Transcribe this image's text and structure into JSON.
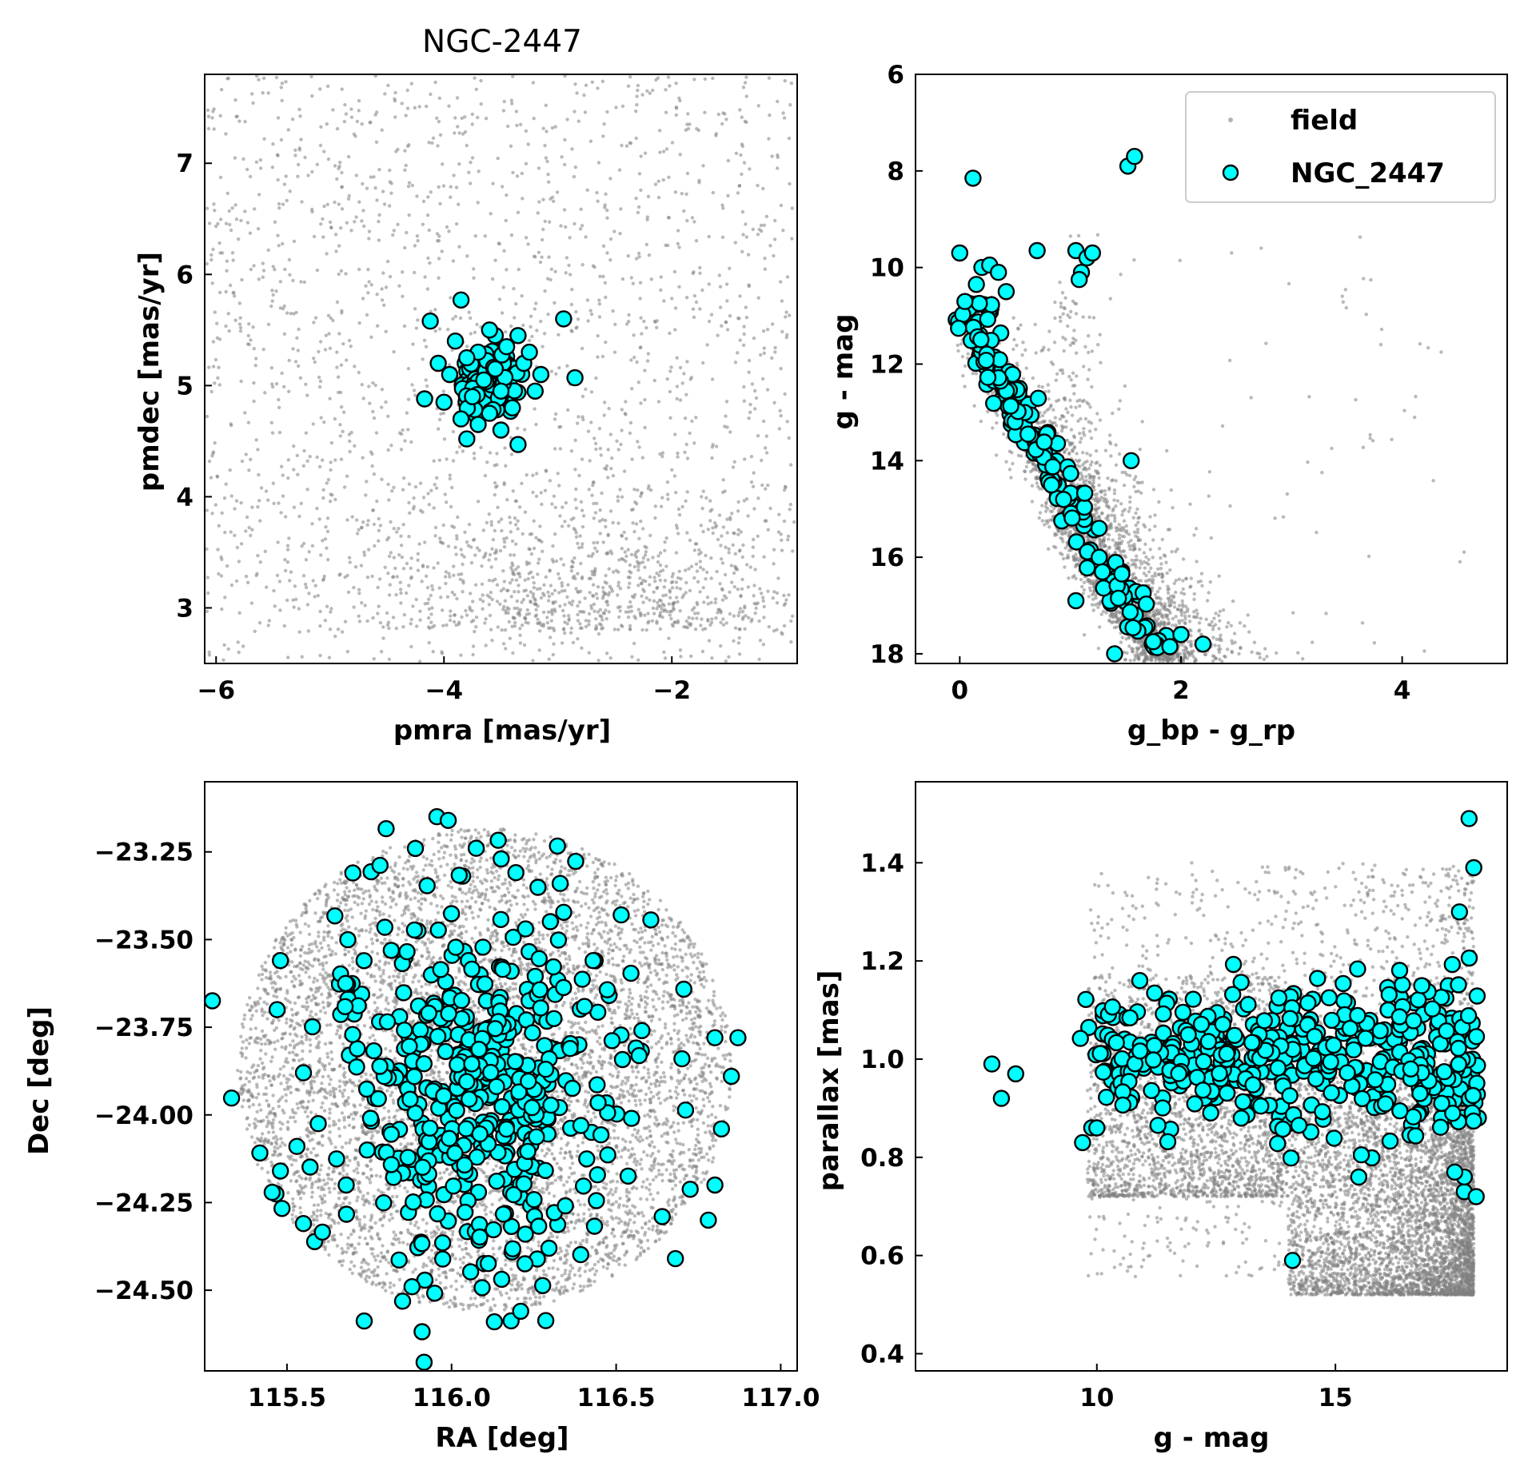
{
  "colors": {
    "field": "#808080",
    "cluster_fill": "#00ffff",
    "cluster_edge": "#000000"
  },
  "chart_data": [
    {
      "type": "scatter",
      "title": "NGC-2447",
      "xlabel": "pmra [mas/yr]",
      "ylabel": "pmdec [mas/yr]",
      "xlim": [
        -6.1,
        -0.9
      ],
      "ylim": [
        2.5,
        7.8
      ],
      "xticks": [
        -6,
        -4,
        -2
      ],
      "yticks": [
        3,
        4,
        5,
        6,
        7
      ],
      "field_distribution": {
        "description": "uniform background with denser region toward lower right",
        "count": 2600
      },
      "series": [
        {
          "name": "NGC_2447",
          "points": [
            [
              -3.85,
              5.77
            ],
            [
              -4.12,
              5.58
            ],
            [
              -2.95,
              5.6
            ],
            [
              -2.85,
              5.07
            ],
            [
              -4.17,
              4.88
            ],
            [
              -3.35,
              4.47
            ],
            [
              -3.8,
              4.52
            ],
            [
              -3.5,
              4.95
            ],
            [
              -3.7,
              5.3
            ],
            [
              -3.55,
              5.45
            ],
            [
              -3.95,
              5.1
            ],
            [
              -3.3,
              5.2
            ],
            [
              -3.6,
              4.75
            ],
            [
              -3.45,
              5.35
            ],
            [
              -3.75,
              4.9
            ],
            [
              -3.2,
              4.95
            ],
            [
              -3.9,
              5.4
            ],
            [
              -3.65,
              5.05
            ],
            [
              -3.4,
              4.8
            ],
            [
              -4.0,
              4.85
            ],
            [
              -3.25,
              5.3
            ],
            [
              -3.55,
              5.15
            ],
            [
              -3.85,
              4.7
            ],
            [
              -3.35,
              5.45
            ],
            [
              -3.7,
              4.65
            ],
            [
              -4.05,
              5.2
            ],
            [
              -3.15,
              5.1
            ],
            [
              -3.5,
              4.6
            ],
            [
              -3.8,
              5.25
            ],
            [
              -3.6,
              5.5
            ]
          ],
          "extra_random_count": 130,
          "extra_center": [
            -3.6,
            5.02
          ],
          "extra_spread": [
            0.28,
            0.26
          ]
        }
      ]
    },
    {
      "type": "scatter",
      "xlabel": "g_bp - g_rp",
      "ylabel": "g - mag",
      "xlim": [
        -0.4,
        4.95
      ],
      "ylim": [
        18.2,
        6.0
      ],
      "yaxis_inverted": true,
      "xticks": [
        0,
        2,
        4
      ],
      "yticks": [
        6,
        8,
        10,
        12,
        14,
        16,
        18
      ],
      "legend": {
        "position": "top-right",
        "entries": [
          "field",
          "NGC_2447"
        ]
      },
      "field_distribution": {
        "description": "main sequence band plus scattered redder field stars",
        "count": 3200
      },
      "series": [
        {
          "name": "field"
        },
        {
          "name": "NGC_2447",
          "sequence": [
            [
              0.15,
              10.7
            ],
            [
              0.1,
              11.0
            ],
            [
              0.15,
              11.5
            ],
            [
              0.25,
              12.0
            ],
            [
              0.4,
              12.5
            ],
            [
              0.5,
              13.0
            ],
            [
              0.65,
              13.5
            ],
            [
              0.75,
              14.0
            ],
            [
              0.9,
              14.5
            ],
            [
              1.0,
              15.0
            ],
            [
              1.1,
              15.5
            ],
            [
              1.2,
              16.0
            ],
            [
              1.35,
              16.5
            ],
            [
              1.5,
              17.0
            ],
            [
              1.65,
              17.5
            ],
            [
              1.8,
              17.9
            ]
          ],
          "sequence_count": 190,
          "extra_points": [
            [
              0.12,
              8.15
            ],
            [
              1.52,
              7.9
            ],
            [
              1.58,
              7.7
            ],
            [
              0.0,
              9.7
            ],
            [
              0.7,
              9.65
            ],
            [
              1.05,
              9.65
            ],
            [
              1.1,
              10.1
            ],
            [
              1.15,
              9.8
            ],
            [
              1.2,
              9.7
            ],
            [
              1.08,
              10.25
            ],
            [
              0.2,
              10.0
            ],
            [
              0.27,
              9.95
            ],
            [
              0.35,
              10.1
            ],
            [
              0.15,
              10.35
            ],
            [
              0.42,
              10.5
            ],
            [
              1.55,
              14.0
            ],
            [
              1.05,
              16.9
            ],
            [
              1.4,
              18.0
            ],
            [
              1.75,
              17.75
            ],
            [
              2.2,
              17.8
            ],
            [
              2.0,
              17.6
            ],
            [
              1.9,
              17.85
            ]
          ]
        }
      ]
    },
    {
      "type": "scatter",
      "xlabel": "RA [deg]",
      "ylabel": "Dec [deg]",
      "xlim": [
        115.25,
        117.05
      ],
      "ylim": [
        -24.73,
        -23.05
      ],
      "xticks": [
        115.5,
        116.0,
        116.5,
        117.0
      ],
      "yticks": [
        -23.25,
        -23.5,
        -23.75,
        -24.0,
        -24.25,
        -24.5
      ],
      "field_distribution": {
        "description": "uniform circular field",
        "center": [
          116.1,
          -23.87
        ],
        "radius_deg": 0.75,
        "count": 6500
      },
      "series": [
        {
          "name": "NGC_2447",
          "points": [
            [
              115.99,
              -23.16
            ],
            [
              115.7,
              -23.31
            ],
            [
              115.48,
              -23.56
            ],
            [
              115.47,
              -23.7
            ],
            [
              115.55,
              -23.88
            ],
            [
              115.53,
              -24.09
            ],
            [
              115.48,
              -24.16
            ],
            [
              115.55,
              -24.31
            ],
            [
              115.68,
              -24.2
            ],
            [
              116.13,
              -24.59
            ],
            [
              116.21,
              -24.56
            ],
            [
              116.64,
              -24.29
            ],
            [
              116.68,
              -24.41
            ],
            [
              116.78,
              -24.3
            ],
            [
              116.8,
              -24.2
            ],
            [
              116.87,
              -23.78
            ],
            [
              116.85,
              -23.89
            ],
            [
              116.8,
              -23.78
            ],
            [
              116.43,
              -23.56
            ],
            [
              115.88,
              -24.49
            ],
            [
              116.33,
              -23.34
            ],
            [
              115.89,
              -23.24
            ],
            [
              116.7,
              -23.84
            ],
            [
              116.82,
              -24.04
            ]
          ],
          "extra_random_count": 470,
          "extra_center": [
            116.08,
            -23.9
          ],
          "extra_spread": [
            0.22,
            0.27
          ]
        }
      ]
    },
    {
      "type": "scatter",
      "xlabel": "g - mag",
      "ylabel": "parallax [mas]",
      "xlim": [
        6.2,
        18.6
      ],
      "ylim": [
        0.365,
        1.565
      ],
      "xticks": [
        10,
        15
      ],
      "yticks": [
        0.4,
        0.6,
        0.8,
        1.0,
        1.2,
        1.4
      ],
      "field_distribution": {
        "description": "field stars concentrated at faint magnitudes and low parallax",
        "count": 9000
      },
      "series": [
        {
          "name": "NGC_2447",
          "points": [
            [
              7.8,
              0.99
            ],
            [
              8.0,
              0.92
            ],
            [
              8.3,
              0.97
            ],
            [
              9.7,
              0.83
            ],
            [
              10.0,
              0.86
            ],
            [
              10.9,
              1.16
            ],
            [
              14.1,
              0.59
            ],
            [
              17.8,
              1.49
            ],
            [
              17.9,
              1.39
            ],
            [
              17.6,
              1.3
            ],
            [
              17.7,
              0.73
            ],
            [
              17.95,
              0.72
            ],
            [
              17.7,
              0.76
            ],
            [
              17.5,
              0.77
            ]
          ],
          "extra_random_count": 460,
          "extra_x_range": [
            9.6,
            18.0
          ],
          "extra_center_y": 1.0,
          "extra_spread_y": 0.05
        }
      ]
    }
  ]
}
